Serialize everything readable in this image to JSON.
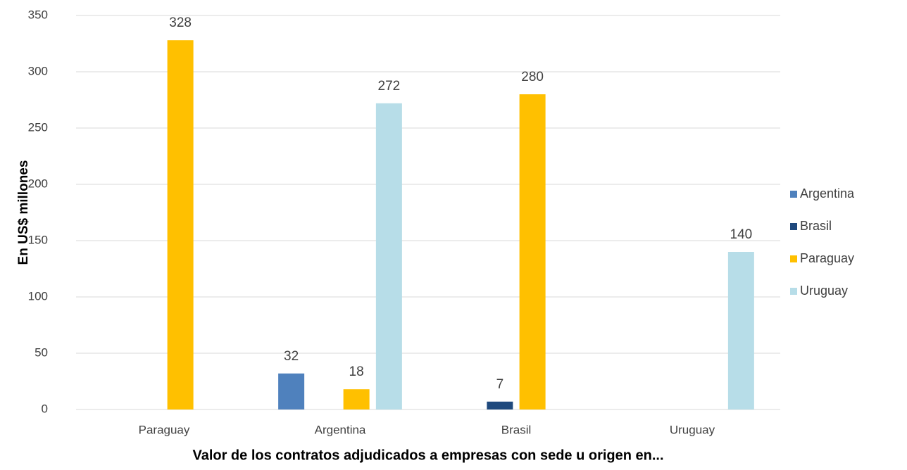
{
  "chart_data": {
    "type": "bar",
    "x_label": "Valor de los contratos adjudicados a empresas con sede u origen en...",
    "y_label": "En US$ millones",
    "categories": [
      "Paraguay",
      "Argentina",
      "Brasil",
      "Uruguay"
    ],
    "series": [
      {
        "name": "Argentina",
        "color": "#4f81bd",
        "values": [
          null,
          32,
          null,
          null
        ]
      },
      {
        "name": "Brasil",
        "color": "#1f497d",
        "values": [
          null,
          null,
          7,
          null
        ]
      },
      {
        "name": "Paraguay",
        "color": "#ffc000",
        "values": [
          328,
          18,
          280,
          null
        ]
      },
      {
        "name": "Uruguay",
        "color": "#b7dde8",
        "values": [
          null,
          272,
          null,
          140
        ]
      }
    ],
    "ylim": [
      0,
      350
    ],
    "yticks": [
      0,
      50,
      100,
      150,
      200,
      250,
      300,
      350
    ],
    "grid": true,
    "legend": "right"
  }
}
